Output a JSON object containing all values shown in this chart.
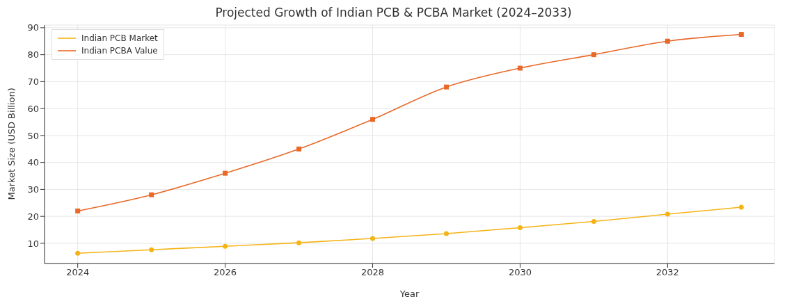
{
  "chart_data": {
    "type": "line",
    "title": "Projected Growth of Indian PCB & PCBA Market (2024–2033)",
    "xlabel": "Year",
    "ylabel": "Market Size (USD Billion)",
    "x": [
      2024,
      2025,
      2026,
      2027,
      2028,
      2029,
      2030,
      2031,
      2032,
      2033
    ],
    "series": [
      {
        "name": "Indian PCB Market",
        "color": "#f5b316",
        "marker": "circle",
        "values": [
          6.3,
          7.6,
          8.9,
          10.2,
          11.8,
          13.6,
          15.8,
          18.1,
          20.8,
          23.4
        ]
      },
      {
        "name": "Indian PCBA Value",
        "color": "#e8692a",
        "marker": "square",
        "values": [
          22,
          28,
          36,
          45,
          56,
          68,
          75,
          80,
          85,
          87.5
        ]
      }
    ],
    "xlim": [
      2023.55,
      2033.45
    ],
    "xticks": [
      2024,
      2026,
      2028,
      2030,
      2032
    ],
    "ylim": [
      2.5,
      91
    ],
    "yticks": [
      10,
      20,
      30,
      40,
      50,
      60,
      70,
      80,
      90
    ],
    "grid": true,
    "legend": "top left",
    "line_style": "solid"
  }
}
